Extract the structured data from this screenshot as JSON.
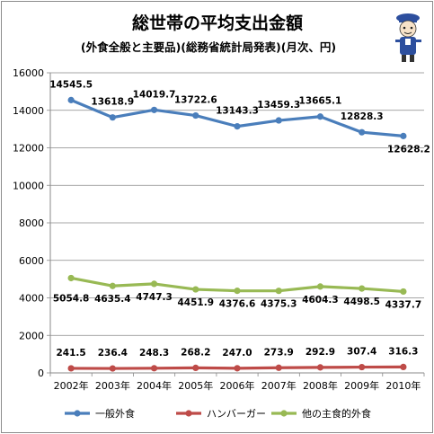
{
  "chart_data": {
    "type": "line",
    "title": "総世帯の平均支出金額",
    "subtitle": "(外食全般と主要品)(総務省統計局発表)(月次、円)",
    "categories": [
      "2002年",
      "2003年",
      "2004年",
      "2005年",
      "2006年",
      "2007年",
      "2008年",
      "2009年",
      "2010年"
    ],
    "ylim": [
      0,
      16000
    ],
    "yticks": [
      0,
      2000,
      4000,
      6000,
      8000,
      10000,
      12000,
      14000,
      16000
    ],
    "grid": true,
    "legend_position": "bottom",
    "series": [
      {
        "name": "一般外食",
        "color": "#4a7ebb",
        "values": [
          14545.5,
          13618.9,
          14019.7,
          13722.6,
          13143.3,
          13459.3,
          13665.1,
          12828.3,
          12628.2
        ],
        "labels": [
          "14545.5",
          "13618.9",
          "14019.7",
          "13722.6",
          "13143.3",
          "13459.3",
          "13665.1",
          "12828.3",
          "12628.2"
        ]
      },
      {
        "name": "ハンバーガー",
        "color": "#be4b48",
        "values": [
          241.5,
          236.4,
          248.3,
          268.2,
          247.0,
          273.9,
          292.9,
          307.4,
          316.3
        ],
        "labels": [
          "241.5",
          "236.4",
          "248.3",
          "268.2",
          "247.0",
          "273.9",
          "292.9",
          "307.4",
          "316.3"
        ]
      },
      {
        "name": "他の主食的外食",
        "color": "#98b954",
        "values": [
          5054.8,
          4635.4,
          4747.3,
          4451.9,
          4376.6,
          4375.3,
          4604.3,
          4498.5,
          4337.7
        ],
        "labels": [
          "5054.8",
          "4635.4",
          "4747.3",
          "4451.9",
          "4376.6",
          "4375.3",
          "4604.3",
          "4498.5",
          "4337.7"
        ]
      }
    ]
  },
  "mascot": {
    "icon": "mascot-character-icon"
  }
}
